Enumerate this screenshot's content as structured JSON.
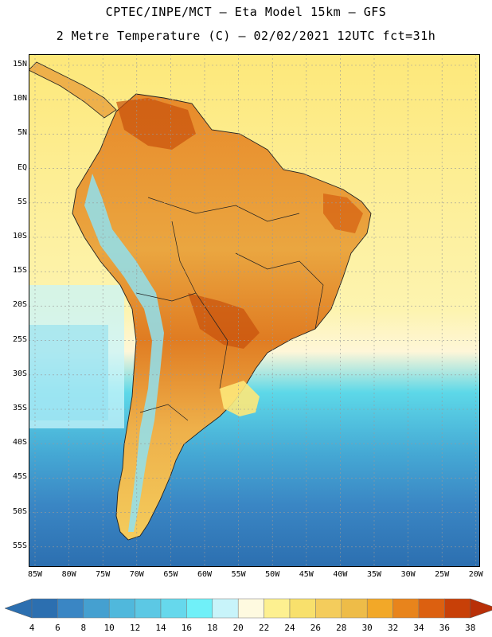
{
  "header": {
    "line1": "CPTEC/INPE/MCT –  Eta Model 15km – GFS",
    "line2": "2 Metre Temperature (C) – 02/02/2021 12UTC fct=31h"
  },
  "map": {
    "lat_labels": [
      "15N",
      "10N",
      "5N",
      "EQ",
      "5S",
      "10S",
      "15S",
      "20S",
      "25S",
      "30S",
      "35S",
      "40S",
      "45S",
      "50S",
      "55S"
    ],
    "lon_labels": [
      "85W",
      "80W",
      "75W",
      "70W",
      "65W",
      "60W",
      "55W",
      "50W",
      "45W",
      "40W",
      "35W",
      "30W",
      "25W",
      "20W"
    ],
    "colors": {
      "ocean_warm": "#fde87a",
      "ocean_cool": "#5dd8e8",
      "ocean_cold": "#3a86c4",
      "land_hot": "#d9741a",
      "land_warm": "#eeb04a",
      "andes_cold": "#8fe0f0",
      "border": "#222222"
    }
  },
  "colorbar": {
    "labels": [
      "4",
      "6",
      "8",
      "10",
      "12",
      "14",
      "16",
      "18",
      "20",
      "22",
      "24",
      "26",
      "28",
      "30",
      "32",
      "34",
      "36",
      "38"
    ],
    "colors": [
      "#2c6fb0",
      "#3a86c4",
      "#45a0d0",
      "#50b8dc",
      "#5cc8e4",
      "#66d8ec",
      "#70f0f8",
      "#c8f4fa",
      "#fefae0",
      "#fdf090",
      "#f8e06c",
      "#f4cc5c",
      "#eebc48",
      "#f2a828",
      "#e8841c",
      "#dc6010",
      "#c84008"
    ],
    "left_arrow": "#2c6fb0",
    "right_arrow": "#b83008"
  }
}
